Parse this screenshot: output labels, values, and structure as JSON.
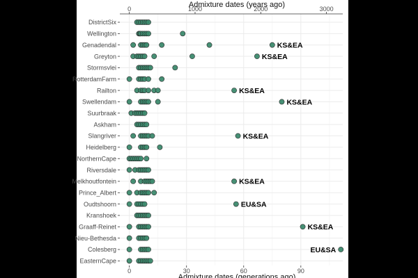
{
  "chart_data": {
    "type": "scatter",
    "title": "",
    "x_top_label": "Admixture dates (years ago)",
    "x_bottom_label": "Admixture dates (generations ago)",
    "x_top_ticks": [
      0,
      1000,
      2000,
      3000
    ],
    "x_bottom_ticks": [
      0,
      30,
      60,
      90
    ],
    "xlim_generations": [
      -5,
      112
    ],
    "years_per_generation": 29,
    "marker_color": "#3d8a6e",
    "marker_edge": "#2a2a2a",
    "categories": [
      "DistrictSix",
      "Wellington",
      "Genadendal",
      "Greyton",
      "Stormsvlei",
      "RotterdamFarm",
      "Railton",
      "Swellendam",
      "Suurbraak",
      "Askham",
      "Slangriver",
      "Heidelberg",
      "NorthernCape",
      "Riversdale",
      "Melkhoutfontein",
      "Prince_Albert",
      "Oudtshoorn",
      "Kranshoek",
      "Graaff-Reinet",
      "Nieu-Bethesda",
      "Colesberg",
      "EasternCape"
    ],
    "series": [
      {
        "name": "DistrictSix",
        "values": [
          4,
          5,
          6,
          7,
          8,
          9,
          10
        ]
      },
      {
        "name": "Wellington",
        "values": [
          5,
          5.5,
          6,
          7,
          8,
          9,
          10,
          28
        ]
      },
      {
        "name": "Genadendal",
        "values": [
          2,
          6,
          7,
          8,
          9,
          17,
          42,
          75
        ]
      },
      {
        "name": "Greyton",
        "values": [
          2,
          4,
          5,
          6,
          7,
          8,
          13,
          33,
          67
        ]
      },
      {
        "name": "Stormsvlei",
        "values": [
          5,
          6,
          7,
          8,
          9,
          10,
          11,
          24
        ]
      },
      {
        "name": "RotterdamFarm",
        "values": [
          0,
          5,
          6,
          7,
          8,
          10,
          17
        ]
      },
      {
        "name": "Railton",
        "values": [
          4,
          6,
          7,
          8,
          10,
          13,
          15,
          55
        ]
      },
      {
        "name": "Swellendam",
        "values": [
          0,
          6,
          7,
          8,
          9,
          10,
          15,
          80
        ]
      },
      {
        "name": "Suurbraak",
        "values": [
          1,
          3,
          4,
          5,
          6,
          7,
          8
        ]
      },
      {
        "name": "Askham",
        "values": [
          4,
          5,
          6,
          7,
          8,
          9
        ]
      },
      {
        "name": "Slangriver",
        "values": [
          2,
          6,
          7,
          8,
          9,
          10,
          12,
          57
        ]
      },
      {
        "name": "Heidelberg",
        "values": [
          0,
          6,
          7,
          8,
          9,
          16
        ]
      },
      {
        "name": "NorthernCape",
        "values": [
          0,
          1,
          2,
          3,
          4,
          5,
          6,
          9
        ]
      },
      {
        "name": "Riversdale",
        "values": [
          0,
          3,
          5,
          6,
          7,
          8,
          9,
          10
        ]
      },
      {
        "name": "Melkhoutfontein",
        "values": [
          2,
          6,
          8,
          9,
          10,
          11,
          12,
          55
        ]
      },
      {
        "name": "Prince_Albert",
        "values": [
          0,
          4,
          6,
          7,
          8,
          9,
          10,
          13
        ]
      },
      {
        "name": "Oudtshoorn",
        "values": [
          0,
          4,
          5,
          6,
          7,
          8,
          56
        ]
      },
      {
        "name": "Kranshoek",
        "values": [
          4,
          5,
          6,
          7,
          8,
          9,
          10
        ]
      },
      {
        "name": "Graaff-Reinet",
        "values": [
          0,
          5,
          6,
          7,
          8,
          9,
          10,
          91
        ]
      },
      {
        "name": "Nieu-Bethesda",
        "values": [
          0,
          5,
          6,
          7,
          8,
          9
        ]
      },
      {
        "name": "Colesberg",
        "values": [
          0,
          6,
          7,
          8,
          9,
          10,
          111
        ]
      },
      {
        "name": "EasternCape",
        "values": [
          0,
          5,
          6,
          7,
          8,
          9,
          10,
          11
        ]
      }
    ],
    "annotations": [
      {
        "row": "Genadendal",
        "x": 75,
        "text": "KS&EA"
      },
      {
        "row": "Greyton",
        "x": 67,
        "text": "KS&EA"
      },
      {
        "row": "Railton",
        "x": 55,
        "text": "KS&EA"
      },
      {
        "row": "Swellendam",
        "x": 80,
        "text": "KS&EA"
      },
      {
        "row": "Slangriver",
        "x": 57,
        "text": "KS&EA"
      },
      {
        "row": "Melkhoutfontein",
        "x": 55,
        "text": "KS&EA"
      },
      {
        "row": "Oudtshoorn",
        "x": 56,
        "text": "EU&SA"
      },
      {
        "row": "Graaff-Reinet",
        "x": 91,
        "text": "KS&EA"
      },
      {
        "row": "Colesberg",
        "x": 111,
        "text": "EU&SA",
        "position": "left"
      }
    ]
  }
}
